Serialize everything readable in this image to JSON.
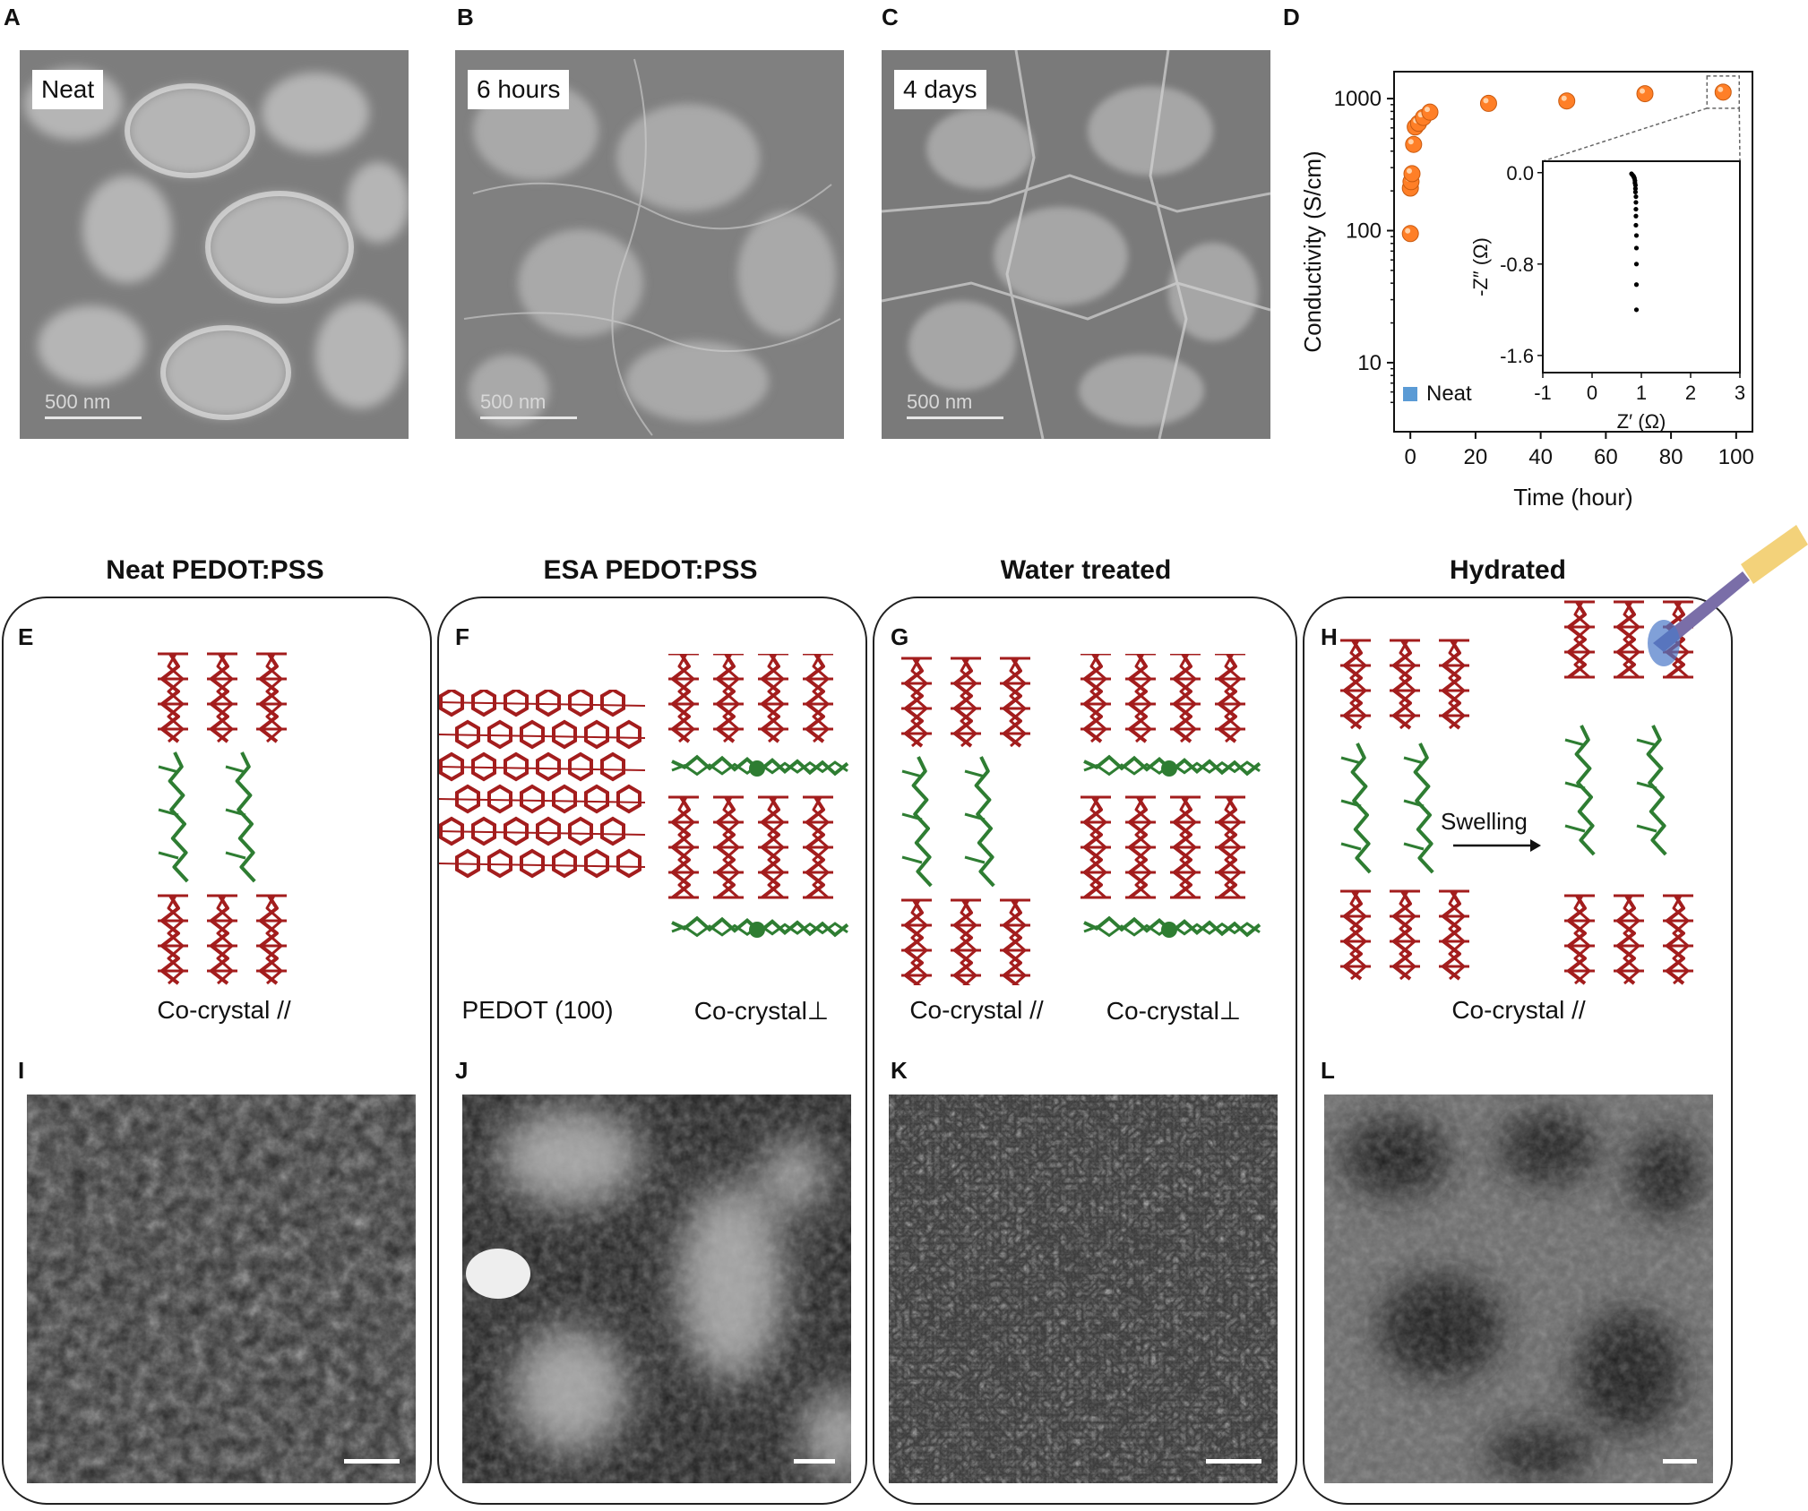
{
  "panel_letters": {
    "a": "A",
    "b": "B",
    "c": "C",
    "d": "D",
    "e": "E",
    "f": "F",
    "g": "G",
    "h": "H",
    "i": "I",
    "j": "J",
    "k": "K",
    "l": "L"
  },
  "sem_panels": [
    {
      "label": "Neat",
      "scale": "500 nm"
    },
    {
      "label": "6 hours",
      "scale": "500 nm"
    },
    {
      "label": "4 days",
      "scale": "500 nm"
    }
  ],
  "chart_data": [
    {
      "type": "scatter",
      "xlabel": "Time (hour)",
      "ylabel": "Conductivity (S/cm)",
      "yscale": "log",
      "xlim": [
        -5,
        105
      ],
      "ylim": [
        3,
        1600
      ],
      "xticks": [
        0,
        20,
        40,
        60,
        80,
        100
      ],
      "yticks": [
        10,
        100,
        1000
      ],
      "ytick_labels": [
        "10",
        "100",
        "1000"
      ],
      "legend": {
        "label": "Neat",
        "color": "#5b9bd5",
        "position": "bottom-left"
      },
      "series": [
        {
          "color": "#ff7f27",
          "x": [
            0,
            0,
            0.2,
            0.5,
            1,
            1.5,
            2.5,
            4,
            6,
            24,
            48,
            72,
            96
          ],
          "y": [
            95,
            210,
            235,
            270,
            450,
            610,
            650,
            720,
            790,
            920,
            960,
            1090,
            1120
          ]
        }
      ]
    },
    {
      "type": "scatter",
      "xlabel": "Z′ (Ω)",
      "ylabel": "-Z″ (Ω)",
      "xlim": [
        -1,
        3
      ],
      "ylim": [
        -1.75,
        0.1
      ],
      "xticks": [
        -1,
        0,
        1,
        2,
        3
      ],
      "yticks": [
        0.0,
        -0.8,
        -1.6
      ],
      "ytick_labels": [
        "0.0",
        "-0.8",
        "-1.6"
      ],
      "series": [
        {
          "color": "#000000",
          "x": [
            0.8,
            0.82,
            0.84,
            0.85,
            0.86,
            0.87,
            0.87,
            0.88,
            0.88,
            0.88,
            0.89,
            0.89,
            0.89,
            0.89,
            0.89,
            0.9,
            0.9,
            0.9,
            0.9,
            0.9
          ],
          "y": [
            -0.01,
            -0.02,
            -0.03,
            -0.04,
            -0.05,
            -0.07,
            -0.09,
            -0.11,
            -0.14,
            -0.17,
            -0.21,
            -0.26,
            -0.32,
            -0.38,
            -0.46,
            -0.55,
            -0.66,
            -0.8,
            -0.98,
            -1.2
          ]
        }
      ]
    }
  ],
  "sections": [
    {
      "title": "Neat PEDOT:PSS",
      "captions": [
        "Co-crystal //"
      ]
    },
    {
      "title": "ESA PEDOT:PSS",
      "captions": [
        "PEDOT (100)",
        "Co-crystal⊥"
      ]
    },
    {
      "title": "Water treated",
      "captions": [
        "Co-crystal //",
        "Co-crystal⊥"
      ]
    },
    {
      "title": "Hydrated",
      "captions": [
        "Co-crystal //"
      ],
      "arrow_label": "Swelling"
    }
  ],
  "colors": {
    "pedot": "#a31d1d",
    "pss": "#2e7d32",
    "accent_point": "#ff7f27"
  }
}
